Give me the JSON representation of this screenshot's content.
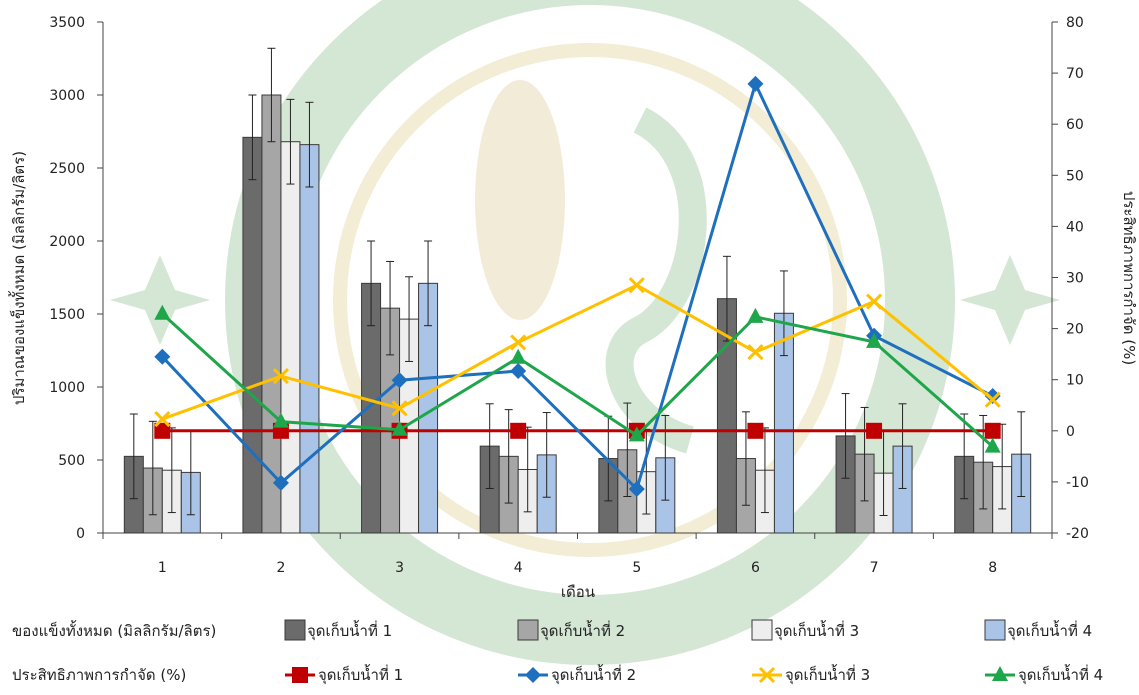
{
  "chart_data": {
    "type": "bar",
    "xlabel": "เดือน",
    "ylabel": "ปริมาณของแข็งทั้งหมด (มิลลิกรัม/ลิตร)",
    "y2label": "ประสิทธิภาพการกำจัด (%)",
    "categories": [
      "1",
      "2",
      "3",
      "4",
      "5",
      "6",
      "7",
      "8"
    ],
    "ylim": [
      0,
      3500
    ],
    "yticks": [
      0,
      500,
      1000,
      1500,
      2000,
      2500,
      3000,
      3500
    ],
    "y2lim": [
      -20,
      80
    ],
    "y2ticks": [
      -20,
      -10,
      0,
      10,
      20,
      30,
      40,
      50,
      60,
      70,
      80
    ],
    "grid": false,
    "legend_position": "bottom",
    "bar_group_label": "ของแข็งทั้งหมด (มิลลิกรัม/ลิตร)",
    "line_group_label": "ประสิทธิภาพการกำจัด (%)",
    "bar_series": [
      {
        "name": "จุดเก็บน้ำที่ 1",
        "color": "#6b6b6b",
        "values": [
          525,
          2710,
          1710,
          595,
          510,
          1605,
          665,
          525
        ],
        "errors": [
          290,
          290,
          290,
          290,
          290,
          290,
          290,
          290
        ]
      },
      {
        "name": "จุดเก็บน้ำที่ 2",
        "color": "#a6a6a6",
        "values": [
          445,
          3000,
          1540,
          525,
          570,
          510,
          540,
          485
        ],
        "errors": [
          320,
          320,
          320,
          320,
          320,
          320,
          320,
          320
        ]
      },
      {
        "name": "จุดเก็บน้ำที่ 3",
        "color": "#eeeeee",
        "values": [
          430,
          2680,
          1465,
          435,
          420,
          430,
          410,
          455
        ],
        "errors": [
          290,
          290,
          290,
          290,
          290,
          290,
          290,
          290
        ]
      },
      {
        "name": "จุดเก็บน้ำที่ 4",
        "color": "#a9c4e6",
        "values": [
          415,
          2660,
          1710,
          535,
          515,
          1505,
          595,
          540
        ],
        "errors": [
          290,
          290,
          290,
          290,
          290,
          290,
          290,
          290
        ]
      }
    ],
    "line_series": [
      {
        "name": "จุดเก็บน้ำที่ 1",
        "color": "#c00000",
        "marker": "square",
        "values": [
          0,
          0,
          0,
          0,
          0,
          0,
          0,
          0
        ]
      },
      {
        "name": "จุดเก็บน้ำที่ 2",
        "color": "#1f6fbf",
        "marker": "diamond",
        "values": [
          14.5,
          -10.2,
          9.9,
          11.7,
          -11.4,
          67.9,
          18.6,
          6.8
        ]
      },
      {
        "name": "จุดเก็บน้ำที่ 3",
        "color": "#ffc000",
        "marker": "x",
        "values": [
          2.3,
          10.7,
          4.4,
          17.3,
          28.5,
          15.4,
          25.3,
          6.1
        ]
      },
      {
        "name": "จุดเก็บน้ำที่ 4",
        "color": "#1ea64a",
        "marker": "triangle",
        "values": [
          22.9,
          1.8,
          0.2,
          14.3,
          -0.9,
          22.3,
          17.4,
          -3.1
        ]
      }
    ]
  }
}
